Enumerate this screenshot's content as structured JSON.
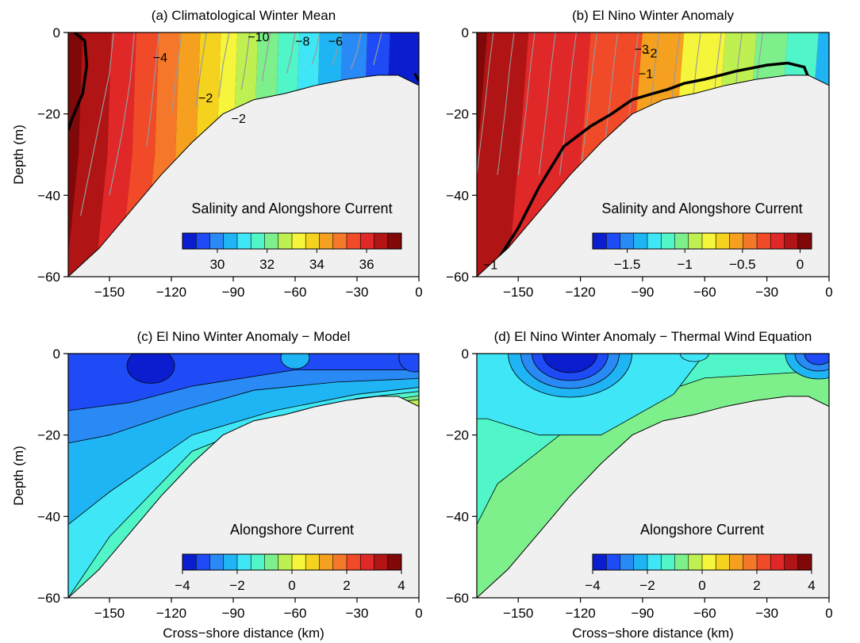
{
  "colors": {
    "palette": [
      "#0a1ed0",
      "#1e4bf5",
      "#2a8af5",
      "#1fb5f5",
      "#3fe6f5",
      "#50f5c8",
      "#7df08c",
      "#bdf050",
      "#f5f53c",
      "#f5d21e",
      "#f5a01e",
      "#f5782a",
      "#f04a28",
      "#e02828",
      "#b01414",
      "#800808"
    ],
    "land": "#f0f0f0",
    "contour_grey": "#9a9a9a",
    "contour_black": "#000000"
  },
  "chart_data": [
    {
      "id": "a",
      "type": "heatmap",
      "title": "(a) Climatological Winter Mean",
      "ylabel": "Depth (m)",
      "xlabel": "",
      "xlim": [
        -170,
        0
      ],
      "ylim": [
        -60,
        0
      ],
      "xticks": [
        "-150",
        "-120",
        "-90",
        "-60",
        "-30",
        "0"
      ],
      "yticks": [
        "0",
        "-20",
        "-40",
        "-60"
      ],
      "field_note": "Salinity and Alongshore Current",
      "colorbar": {
        "ticks": [
          "30",
          "32",
          "34",
          "36"
        ],
        "range": [
          28.6,
          37.4
        ]
      },
      "x_band_limits": [
        -163,
        -149,
        -137,
        -126,
        -116,
        -106,
        -96,
        -88,
        -78,
        -68,
        -58,
        -48,
        -37,
        -25,
        -14
      ],
      "contour_labels": [
        "−10",
        "−8",
        "−6",
        "−4",
        "−2",
        "−2"
      ],
      "bold_contour_value": 0
    },
    {
      "id": "b",
      "type": "heatmap",
      "title": "(b) El Nino Winter Anomaly",
      "ylabel": "",
      "xlabel": "",
      "xlim": [
        -170,
        0
      ],
      "ylim": [
        -60,
        0
      ],
      "xticks": [
        "-150",
        "-120",
        "-90",
        "-60",
        "-30",
        "0"
      ],
      "yticks": [
        "0",
        "-20",
        "-40",
        "-60"
      ],
      "field_note": "Salinity and Alongshore Current",
      "colorbar": {
        "ticks": [
          "-1.5",
          "-1",
          "-0.5",
          "0"
        ],
        "range": [
          -1.8,
          0.1
        ]
      },
      "x_band_limits": [
        -165,
        -145,
        -115,
        -90,
        -70,
        -50,
        -35,
        -20,
        -5
      ],
      "contour_labels": [
        "−3",
        "−2",
        "−1",
        "−1"
      ],
      "bold_contour_value": 0
    },
    {
      "id": "c",
      "type": "heatmap",
      "title": "(c) El Nino Winter Anomaly − Model",
      "ylabel": "Depth (m)",
      "xlabel": "Cross−shore distance (km)",
      "xlim": [
        -170,
        0
      ],
      "ylim": [
        -60,
        0
      ],
      "xticks": [
        "-150",
        "-120",
        "-90",
        "-60",
        "-30",
        "0"
      ],
      "yticks": [
        "0",
        "-20",
        "-40",
        "-60"
      ],
      "field_note": "Alongshore Current",
      "colorbar": {
        "ticks": [
          "-4",
          "-2",
          "0",
          "2",
          "4"
        ],
        "range": [
          -4,
          4
        ]
      },
      "levels_present": [
        -4,
        -3,
        -2.5,
        -2,
        -1.5,
        -1,
        -0.5,
        0.5
      ]
    },
    {
      "id": "d",
      "type": "heatmap",
      "title": "(d) El Nino Winter Anomaly − Thermal Wind Equation",
      "ylabel": "",
      "xlabel": "Cross−shore distance (km)",
      "xlim": [
        -170,
        0
      ],
      "ylim": [
        -60,
        0
      ],
      "xticks": [
        "-150",
        "-120",
        "-90",
        "-60",
        "-30",
        "0"
      ],
      "yticks": [
        "0",
        "-20",
        "-40",
        "-60"
      ],
      "field_note": "Alongshore Current",
      "colorbar": {
        "ticks": [
          "-4",
          "-2",
          "0",
          "2",
          "4"
        ],
        "range": [
          -4,
          4
        ]
      },
      "levels_present": [
        -3,
        -2.5,
        -2,
        -1.5,
        -1,
        -0.5
      ]
    }
  ],
  "bathymetry": {
    "x": [
      -170,
      -155,
      -140,
      -125,
      -110,
      -95,
      -80,
      -65,
      -50,
      -35,
      -20,
      -10,
      0
    ],
    "depth": [
      -60,
      -53,
      -44,
      -35,
      -27,
      -20,
      -16.5,
      -15,
      -13,
      -11.5,
      -10.5,
      -10.5,
      -13
    ]
  }
}
